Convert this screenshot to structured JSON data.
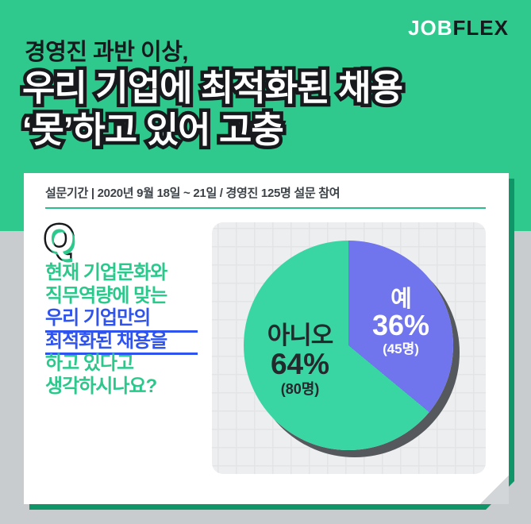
{
  "brand": {
    "logo_job": "JOB",
    "logo_flex": "FLEX"
  },
  "header": {
    "kicker": "경영진 과반 이상,",
    "headline_line1": "우리 기업에 최적화된 채용",
    "headline_line2": "‘못’하고 있어 고충"
  },
  "survey_bar": {
    "text": "설문기간  |  2020년 9월 18일 ~ 21일  /  경영진 125명 설문 참여"
  },
  "question": {
    "q_mark": "Q",
    "lines": [
      {
        "text": "현재 기업문화와"
      },
      {
        "text": "직무역량에 맞는"
      },
      {
        "text": "우리 기업만의"
      },
      {
        "text": "최적화된 채용을"
      },
      {
        "text": "하고 있다고"
      },
      {
        "text": "생각하시나요?"
      }
    ]
  },
  "chart_data": {
    "type": "pie",
    "title": "우리 기업에 최적화된 채용을 하고 있다고 생각하시나요? (경영진 125명 설문)",
    "direction": "clockwise",
    "start_angle_deg": 0,
    "total_respondents": 125,
    "slices": [
      {
        "label": "예",
        "percent": 36,
        "percent_label": "36%",
        "value": 45,
        "count_label": "(45명)",
        "color": "#7074ED"
      },
      {
        "label": "아니오",
        "percent": 64,
        "percent_label": "64%",
        "value": 80,
        "count_label": "(80명)",
        "color": "#39D5A2"
      }
    ],
    "legend_position": "inside",
    "grid": true
  },
  "colors": {
    "background_green": "#2FC98E",
    "background_gray": "#C8CCCE",
    "card_border_green": "#0F9568",
    "panel_gray": "#EDEEF0",
    "question_green": "#2BC88C",
    "question_blue": "#2E53EF",
    "pie_yes_purple": "#7074ED",
    "pie_no_green": "#39D5A2",
    "pie_shadow": "#55595D"
  }
}
